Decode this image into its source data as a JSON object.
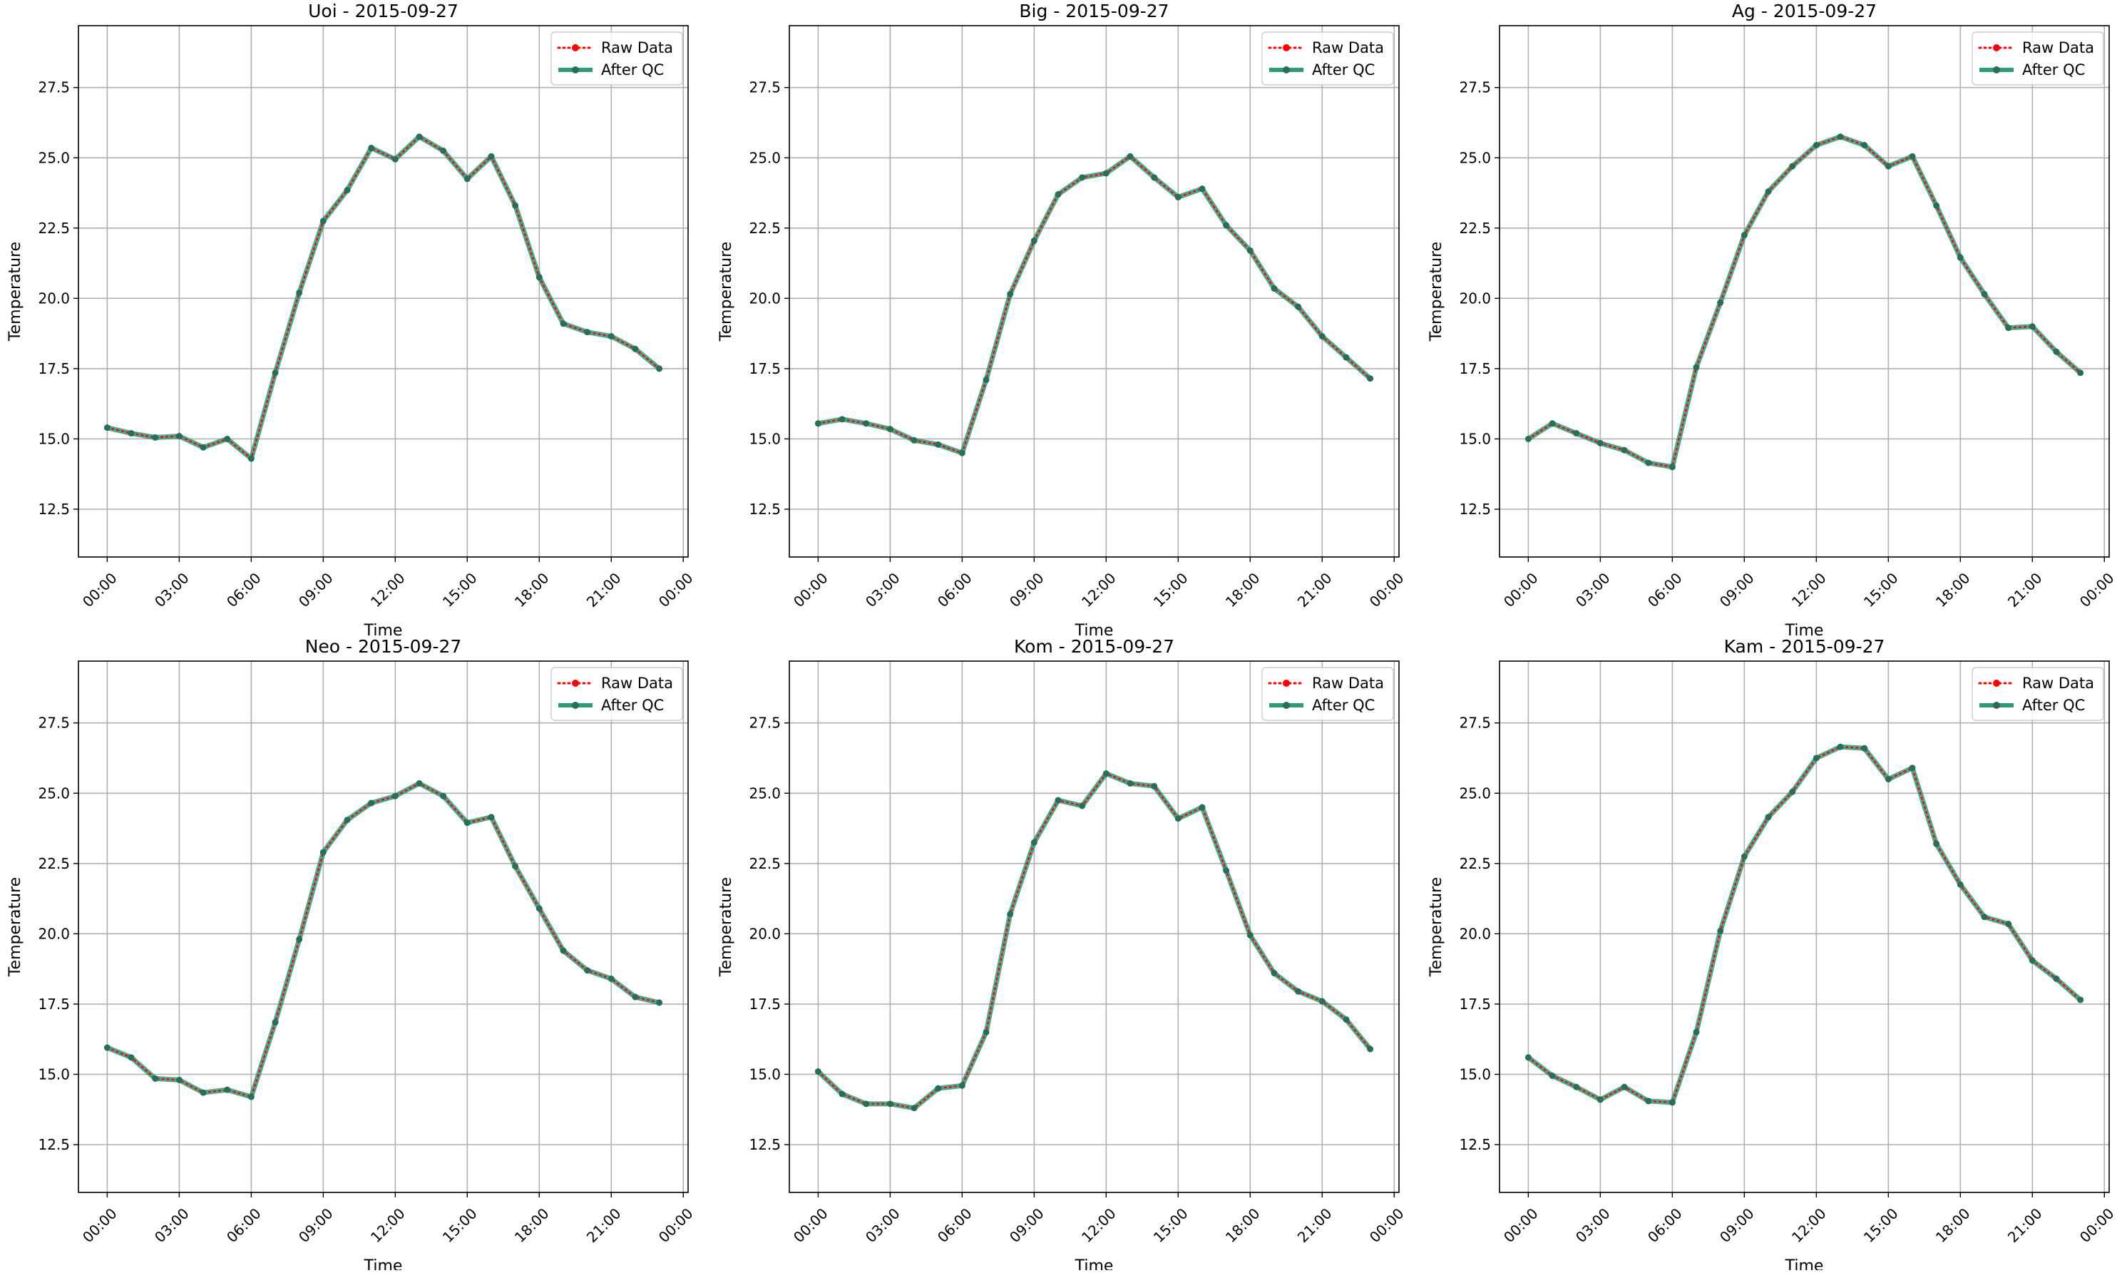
{
  "colors": {
    "raw": "#ff0000",
    "qc": "#2e9a7a",
    "grid": "#b0b0b0",
    "frame": "#000000"
  },
  "legend": {
    "placement": "top-right",
    "raw_label": "Raw Data",
    "qc_label": "After QC"
  },
  "chart_data": [
    {
      "type": "line",
      "title": "Uoi - 2015-09-27",
      "xlabel": "Time",
      "ylabel": "Temperature",
      "xtick_labels": [
        "00:00",
        "03:00",
        "06:00",
        "09:00",
        "12:00",
        "15:00",
        "18:00",
        "21:00",
        "00:00"
      ],
      "ytick_labels": [
        "12.5",
        "15.0",
        "17.5",
        "20.0",
        "22.5",
        "25.0",
        "27.5"
      ],
      "ytick_values": [
        12.5,
        15.0,
        17.5,
        20.0,
        22.5,
        25.0,
        27.5
      ],
      "xlim": [
        -1.2,
        24.2
      ],
      "ylim": [
        10.8,
        29.7
      ],
      "grid": true,
      "x": [
        0,
        1,
        2,
        3,
        4,
        5,
        6,
        7,
        8,
        9,
        10,
        11,
        12,
        13,
        14,
        15,
        16,
        17,
        18,
        19,
        20,
        21,
        22,
        23
      ],
      "series": [
        {
          "name": "Raw Data",
          "values": [
            15.4,
            15.2,
            15.05,
            15.1,
            14.7,
            15.0,
            14.3,
            17.35,
            20.2,
            22.75,
            23.85,
            25.35,
            24.95,
            25.75,
            25.25,
            24.25,
            25.05,
            23.3,
            20.75,
            19.1,
            18.8,
            18.65,
            18.2,
            17.5
          ]
        },
        {
          "name": "After QC",
          "values": [
            15.4,
            15.2,
            15.05,
            15.1,
            14.7,
            15.0,
            14.3,
            17.35,
            20.2,
            22.75,
            23.85,
            25.35,
            24.95,
            25.75,
            25.25,
            24.25,
            25.05,
            23.3,
            20.75,
            19.1,
            18.8,
            18.65,
            18.2,
            17.5
          ]
        }
      ]
    },
    {
      "type": "line",
      "title": "Big - 2015-09-27",
      "xlabel": "Time",
      "ylabel": "Temperature",
      "xtick_labels": [
        "00:00",
        "03:00",
        "06:00",
        "09:00",
        "12:00",
        "15:00",
        "18:00",
        "21:00",
        "00:00"
      ],
      "ytick_labels": [
        "12.5",
        "15.0",
        "17.5",
        "20.0",
        "22.5",
        "25.0",
        "27.5"
      ],
      "ytick_values": [
        12.5,
        15.0,
        17.5,
        20.0,
        22.5,
        25.0,
        27.5
      ],
      "xlim": [
        -1.2,
        24.2
      ],
      "ylim": [
        10.8,
        29.7
      ],
      "grid": true,
      "x": [
        0,
        1,
        2,
        3,
        4,
        5,
        6,
        7,
        8,
        9,
        10,
        11,
        12,
        13,
        14,
        15,
        16,
        17,
        18,
        19,
        20,
        21,
        22,
        23
      ],
      "series": [
        {
          "name": "Raw Data",
          "values": [
            15.55,
            15.7,
            15.55,
            15.35,
            14.95,
            14.8,
            14.5,
            17.1,
            20.15,
            22.05,
            23.7,
            24.3,
            24.45,
            25.05,
            24.3,
            23.6,
            23.9,
            22.6,
            21.7,
            20.35,
            19.7,
            18.65,
            17.9,
            17.15
          ]
        },
        {
          "name": "After QC",
          "values": [
            15.55,
            15.7,
            15.55,
            15.35,
            14.95,
            14.8,
            14.5,
            17.1,
            20.15,
            22.05,
            23.7,
            24.3,
            24.45,
            25.05,
            24.3,
            23.6,
            23.9,
            22.6,
            21.7,
            20.35,
            19.7,
            18.65,
            17.9,
            17.15
          ]
        }
      ]
    },
    {
      "type": "line",
      "title": "Ag - 2015-09-27",
      "xlabel": "Time",
      "ylabel": "Temperature",
      "xtick_labels": [
        "00:00",
        "03:00",
        "06:00",
        "09:00",
        "12:00",
        "15:00",
        "18:00",
        "21:00",
        "00:00"
      ],
      "ytick_labels": [
        "12.5",
        "15.0",
        "17.5",
        "20.0",
        "22.5",
        "25.0",
        "27.5"
      ],
      "ytick_values": [
        12.5,
        15.0,
        17.5,
        20.0,
        22.5,
        25.0,
        27.5
      ],
      "xlim": [
        -1.2,
        24.2
      ],
      "ylim": [
        10.8,
        29.7
      ],
      "grid": true,
      "x": [
        0,
        1,
        2,
        3,
        4,
        5,
        6,
        7,
        8,
        9,
        10,
        11,
        12,
        13,
        14,
        15,
        16,
        17,
        18,
        19,
        20,
        21,
        22,
        23
      ],
      "series": [
        {
          "name": "Raw Data",
          "values": [
            15.0,
            15.55,
            15.2,
            14.85,
            14.6,
            14.15,
            14.0,
            17.55,
            19.85,
            22.25,
            23.8,
            24.7,
            25.45,
            25.75,
            25.45,
            24.7,
            25.05,
            23.3,
            21.45,
            20.15,
            18.95,
            19.0,
            18.1,
            17.35
          ]
        },
        {
          "name": "After QC",
          "values": [
            15.0,
            15.55,
            15.2,
            14.85,
            14.6,
            14.15,
            14.0,
            17.55,
            19.85,
            22.25,
            23.8,
            24.7,
            25.45,
            25.75,
            25.45,
            24.7,
            25.05,
            23.3,
            21.45,
            20.15,
            18.95,
            19.0,
            18.1,
            17.35
          ]
        }
      ]
    },
    {
      "type": "line",
      "title": "Neo - 2015-09-27",
      "xlabel": "Time",
      "ylabel": "Temperature",
      "xtick_labels": [
        "00:00",
        "03:00",
        "06:00",
        "09:00",
        "12:00",
        "15:00",
        "18:00",
        "21:00",
        "00:00"
      ],
      "ytick_labels": [
        "12.5",
        "15.0",
        "17.5",
        "20.0",
        "22.5",
        "25.0",
        "27.5"
      ],
      "ytick_values": [
        12.5,
        15.0,
        17.5,
        20.0,
        22.5,
        25.0,
        27.5
      ],
      "xlim": [
        -1.2,
        24.2
      ],
      "ylim": [
        10.8,
        29.7
      ],
      "grid": true,
      "x": [
        0,
        1,
        2,
        3,
        4,
        5,
        6,
        7,
        8,
        9,
        10,
        11,
        12,
        13,
        14,
        15,
        16,
        17,
        18,
        19,
        20,
        21,
        22,
        23
      ],
      "series": [
        {
          "name": "Raw Data",
          "values": [
            15.95,
            15.6,
            14.85,
            14.8,
            14.35,
            14.45,
            14.2,
            16.85,
            19.8,
            22.9,
            24.05,
            24.65,
            24.9,
            25.35,
            24.9,
            23.95,
            24.15,
            22.4,
            20.9,
            19.4,
            18.7,
            18.4,
            17.75,
            17.55
          ]
        },
        {
          "name": "After QC",
          "values": [
            15.95,
            15.6,
            14.85,
            14.8,
            14.35,
            14.45,
            14.2,
            16.85,
            19.8,
            22.9,
            24.05,
            24.65,
            24.9,
            25.35,
            24.9,
            23.95,
            24.15,
            22.4,
            20.9,
            19.4,
            18.7,
            18.4,
            17.75,
            17.55
          ]
        }
      ]
    },
    {
      "type": "line",
      "title": "Kom - 2015-09-27",
      "xlabel": "Time",
      "ylabel": "Temperature",
      "xtick_labels": [
        "00:00",
        "03:00",
        "06:00",
        "09:00",
        "12:00",
        "15:00",
        "18:00",
        "21:00",
        "00:00"
      ],
      "ytick_labels": [
        "12.5",
        "15.0",
        "17.5",
        "20.0",
        "22.5",
        "25.0",
        "27.5"
      ],
      "ytick_values": [
        12.5,
        15.0,
        17.5,
        20.0,
        22.5,
        25.0,
        27.5
      ],
      "xlim": [
        -1.2,
        24.2
      ],
      "ylim": [
        10.8,
        29.7
      ],
      "grid": true,
      "x": [
        0,
        1,
        2,
        3,
        4,
        5,
        6,
        7,
        8,
        9,
        10,
        11,
        12,
        13,
        14,
        15,
        16,
        17,
        18,
        19,
        20,
        21,
        22,
        23
      ],
      "series": [
        {
          "name": "Raw Data",
          "values": [
            15.1,
            14.3,
            13.95,
            13.95,
            13.8,
            14.5,
            14.6,
            16.5,
            20.7,
            23.25,
            24.75,
            24.55,
            25.7,
            25.35,
            25.25,
            24.1,
            24.5,
            22.25,
            19.95,
            18.6,
            17.95,
            17.6,
            16.95,
            15.9
          ]
        },
        {
          "name": "After QC",
          "values": [
            15.1,
            14.3,
            13.95,
            13.95,
            13.8,
            14.5,
            14.6,
            16.5,
            20.7,
            23.25,
            24.75,
            24.55,
            25.7,
            25.35,
            25.25,
            24.1,
            24.5,
            22.25,
            19.95,
            18.6,
            17.95,
            17.6,
            16.95,
            15.9
          ]
        }
      ]
    },
    {
      "type": "line",
      "title": "Kam - 2015-09-27",
      "xlabel": "Time",
      "ylabel": "Temperature",
      "xtick_labels": [
        "00:00",
        "03:00",
        "06:00",
        "09:00",
        "12:00",
        "15:00",
        "18:00",
        "21:00",
        "00:00"
      ],
      "ytick_labels": [
        "12.5",
        "15.0",
        "17.5",
        "20.0",
        "22.5",
        "25.0",
        "27.5"
      ],
      "ytick_values": [
        12.5,
        15.0,
        17.5,
        20.0,
        22.5,
        25.0,
        27.5
      ],
      "xlim": [
        -1.2,
        24.2
      ],
      "ylim": [
        10.8,
        29.7
      ],
      "grid": true,
      "x": [
        0,
        1,
        2,
        3,
        4,
        5,
        6,
        7,
        8,
        9,
        10,
        11,
        12,
        13,
        14,
        15,
        16,
        17,
        18,
        19,
        20,
        21,
        22,
        23
      ],
      "series": [
        {
          "name": "Raw Data",
          "values": [
            15.6,
            14.95,
            14.55,
            14.1,
            14.55,
            14.05,
            14.0,
            16.5,
            20.1,
            22.75,
            24.15,
            25.05,
            26.25,
            26.65,
            26.6,
            25.5,
            25.9,
            23.2,
            21.75,
            20.6,
            20.35,
            19.05,
            18.4,
            17.65
          ]
        },
        {
          "name": "After QC",
          "values": [
            15.6,
            14.95,
            14.55,
            14.1,
            14.55,
            14.05,
            14.0,
            16.5,
            20.1,
            22.75,
            24.15,
            25.05,
            26.25,
            26.65,
            26.6,
            25.5,
            25.9,
            23.2,
            21.75,
            20.6,
            20.35,
            19.05,
            18.4,
            17.65
          ]
        }
      ]
    }
  ]
}
